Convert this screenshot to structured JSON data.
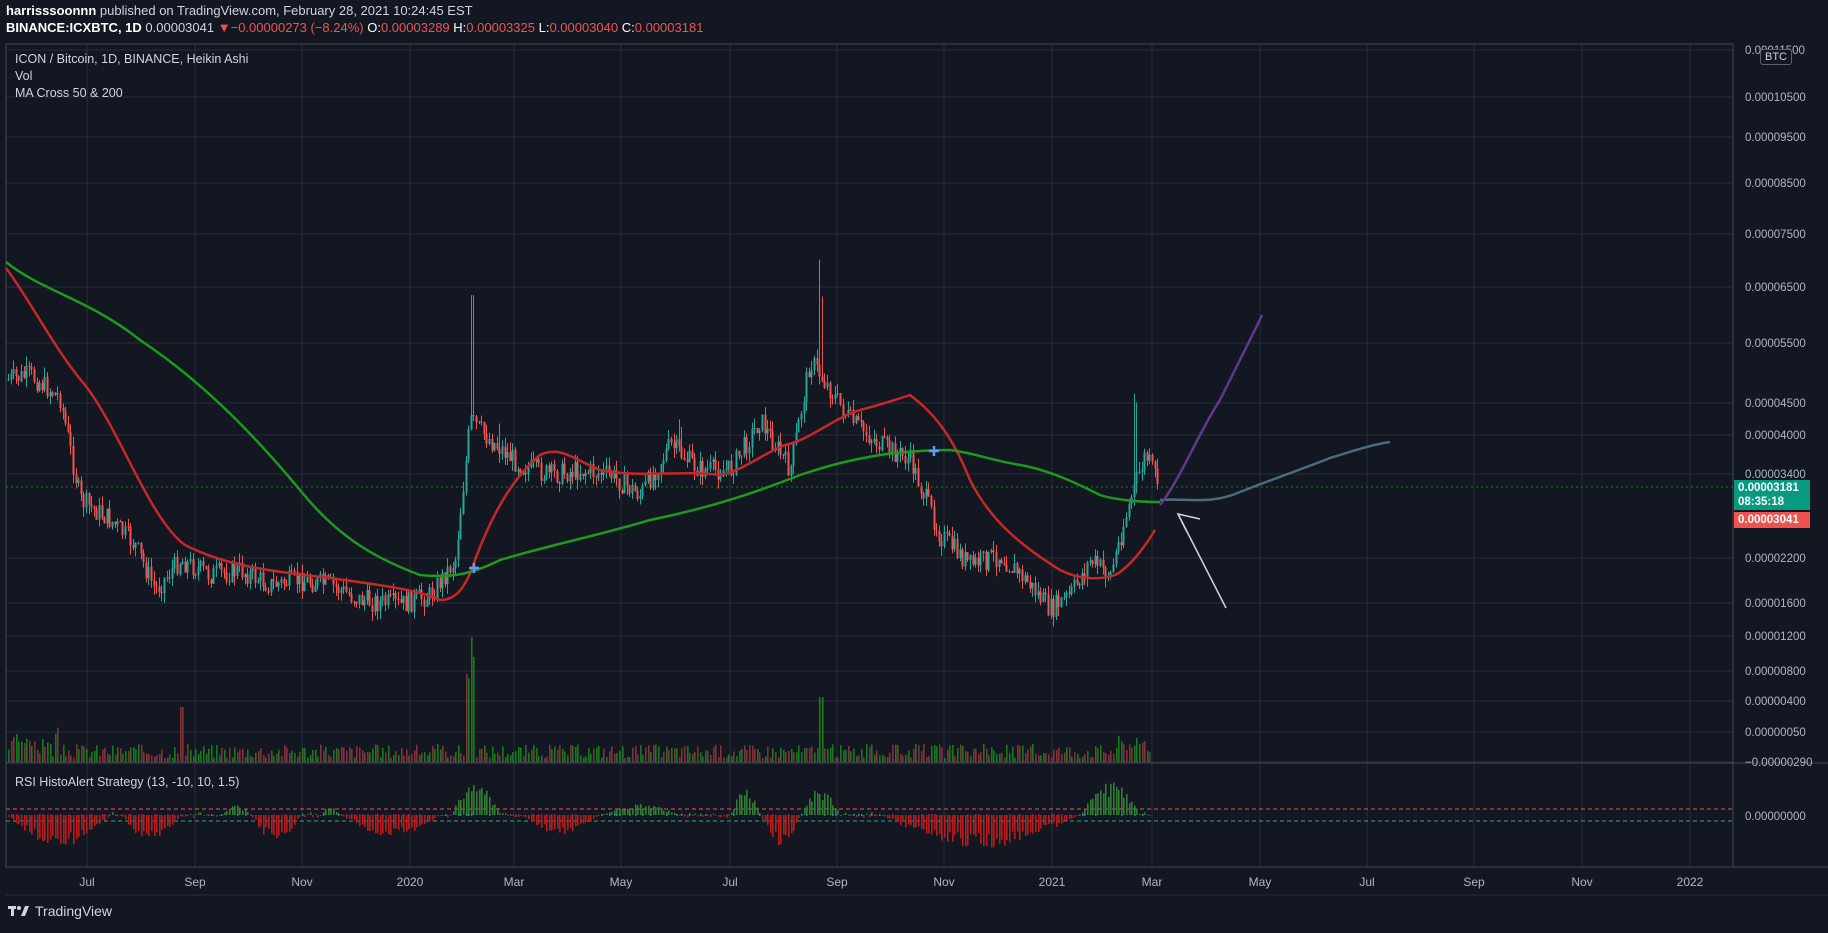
{
  "header": {
    "author": "harrisssoonnn",
    "published": "published on TradingView.com, February 28, 2021 10:24:45 EST",
    "symbol": "BINANCE:ICXBTC, 1D",
    "last": "0.00003041",
    "change": "−0.00000273 (−8.24%)",
    "o_label": "O:",
    "o": "0.00003289",
    "h_label": "H:",
    "h": "0.00003325",
    "l_label": "L:",
    "l": "0.00003040",
    "c_label": "C:",
    "c": "0.00003181"
  },
  "legend": {
    "title": "ICON / Bitcoin, 1D, BINANCE, Heikin Ashi",
    "vol": "Vol",
    "ma": "MA Cross 50 & 200",
    "rsi": "RSI HistoAlert Strategy (13, -10, 10, 1.5)"
  },
  "currency_badge": "BTC",
  "price_tags": {
    "current": "0.00003181",
    "countdown": "08:35:18",
    "prev": "0.00003041"
  },
  "footer": {
    "brand": "TradingView"
  },
  "colors": {
    "background": "#131722",
    "grid": "#2a2e39",
    "up": "#26a69a",
    "down": "#ef5350",
    "ma50": "#c62828",
    "ma200": "#1b9b1b",
    "projection": "#4a6b80",
    "projection2": "#5e3a8a"
  },
  "chart_data": {
    "type": "candlestick",
    "x_ticks": [
      "Jul",
      "Sep",
      "Nov",
      "2020",
      "Mar",
      "May",
      "Jul",
      "Sep",
      "Nov",
      "2021",
      "Mar",
      "May",
      "Jul",
      "Sep",
      "Nov",
      "2022"
    ],
    "y_ticks": [
      "0.00011500",
      "0.00010500",
      "0.00009500",
      "0.00008500",
      "0.00007500",
      "0.00006500",
      "0.00005500",
      "0.00004500",
      "0.00004000",
      "0.00003400",
      "0.00002200",
      "0.00001600",
      "0.00001200",
      "0.00000800",
      "0.00000400",
      "0.00000050",
      "−0.00000290"
    ],
    "rsi_tick": "0.00000000",
    "y_scale": "log",
    "closes_approx": [
      5.2e-05,
      4.8e-05,
      3e-05,
      1.9e-05,
      2e-05,
      1.9e-05,
      1.7e-05,
      1.5e-05,
      4.5e-05,
      3.6e-05,
      3.5e-05,
      3e-05,
      3.6e-05,
      4.3e-05,
      5.9e-05,
      4.1e-05,
      3.2e-05,
      2.3e-05,
      2e-05,
      1.4e-05,
      2.2e-05,
      4.3e-05,
      3e-05
    ],
    "series": [
      {
        "name": "MA 50"
      },
      {
        "name": "MA 200"
      },
      {
        "name": "Vol"
      }
    ]
  }
}
